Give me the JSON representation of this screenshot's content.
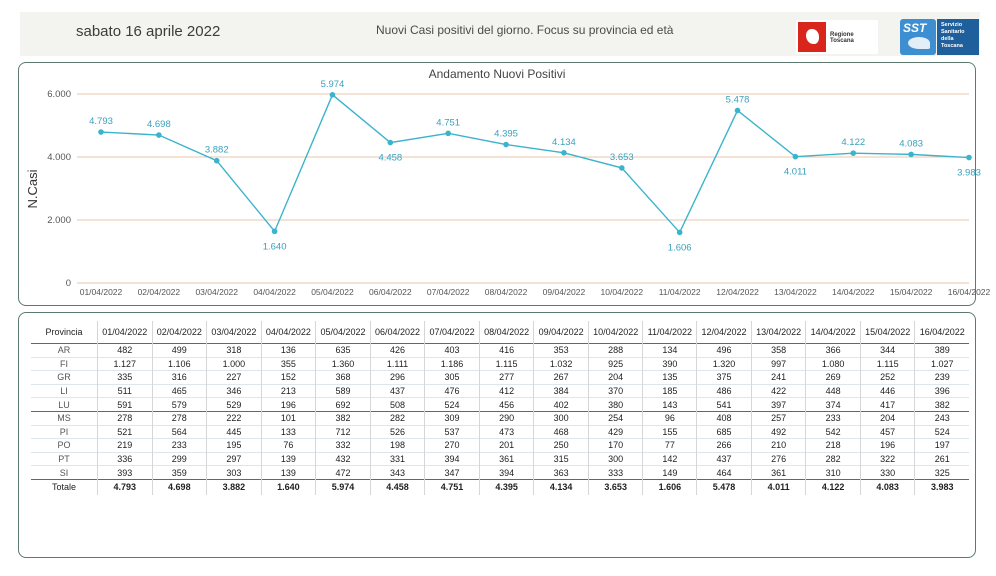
{
  "header": {
    "date": "sabato 16 aprile 2022",
    "subtitle": "Nuovi Casi positivi del giorno. Focus su provincia ed età",
    "logo_regione": "Regione Toscana",
    "logo_sst_short": "SST",
    "logo_sst_line1": "Servizio",
    "logo_sst_line2": "Sanitario",
    "logo_sst_line3": "della",
    "logo_sst_line4": "Toscana"
  },
  "colors": {
    "line": "#3bb3cc",
    "gridline": "#e8c4a8",
    "label": "#3aa0bb",
    "border": "#5c7a6e"
  },
  "chart_data": {
    "type": "line",
    "title": "Andamento Nuovi Positivi",
    "ylabel": "N.Casi",
    "xlabel": "",
    "ylim": [
      0,
      6000
    ],
    "yticks": [
      0,
      2000,
      4000,
      6000
    ],
    "ytick_labels": [
      "0",
      "2.000",
      "4.000",
      "6.000"
    ],
    "categories": [
      "01/04/2022",
      "02/04/2022",
      "03/04/2022",
      "04/04/2022",
      "05/04/2022",
      "06/04/2022",
      "07/04/2022",
      "08/04/2022",
      "09/04/2022",
      "10/04/2022",
      "11/04/2022",
      "12/04/2022",
      "13/04/2022",
      "14/04/2022",
      "15/04/2022",
      "16/04/2022"
    ],
    "values": [
      4793,
      4698,
      3882,
      1640,
      5974,
      4458,
      4751,
      4395,
      4134,
      3653,
      1606,
      5478,
      4011,
      4122,
      4083,
      3983
    ],
    "value_labels": [
      "4.793",
      "4.698",
      "3.882",
      "1.640",
      "5.974",
      "4.458",
      "4.751",
      "4.395",
      "4.134",
      "3.653",
      "1.606",
      "5.478",
      "4.011",
      "4.122",
      "4.083",
      "3.983"
    ],
    "label_below": [
      false,
      false,
      false,
      true,
      false,
      true,
      false,
      false,
      false,
      false,
      true,
      false,
      true,
      false,
      false,
      true
    ],
    "grid": true
  },
  "table": {
    "header_label": "Provincia",
    "rows": [
      {
        "name": "AR",
        "values": [
          "482",
          "499",
          "318",
          "136",
          "635",
          "426",
          "403",
          "416",
          "353",
          "288",
          "134",
          "496",
          "358",
          "366",
          "344",
          "389"
        ]
      },
      {
        "name": "FI",
        "values": [
          "1.127",
          "1.106",
          "1.000",
          "355",
          "1.360",
          "1.111",
          "1.186",
          "1.115",
          "1.032",
          "925",
          "390",
          "1.320",
          "997",
          "1.080",
          "1.115",
          "1.027"
        ]
      },
      {
        "name": "GR",
        "values": [
          "335",
          "316",
          "227",
          "152",
          "368",
          "296",
          "305",
          "277",
          "267",
          "204",
          "135",
          "375",
          "241",
          "269",
          "252",
          "239"
        ]
      },
      {
        "name": "LI",
        "values": [
          "511",
          "465",
          "346",
          "213",
          "589",
          "437",
          "476",
          "412",
          "384",
          "370",
          "185",
          "486",
          "422",
          "448",
          "446",
          "396"
        ]
      },
      {
        "name": "LU",
        "values": [
          "591",
          "579",
          "529",
          "196",
          "692",
          "508",
          "524",
          "456",
          "402",
          "380",
          "143",
          "541",
          "397",
          "374",
          "417",
          "382"
        ]
      },
      {
        "name": "MS",
        "values": [
          "278",
          "278",
          "222",
          "101",
          "382",
          "282",
          "309",
          "290",
          "300",
          "254",
          "96",
          "408",
          "257",
          "233",
          "204",
          "243"
        ]
      },
      {
        "name": "PI",
        "values": [
          "521",
          "564",
          "445",
          "133",
          "712",
          "526",
          "537",
          "473",
          "468",
          "429",
          "155",
          "685",
          "492",
          "542",
          "457",
          "524"
        ]
      },
      {
        "name": "PO",
        "values": [
          "219",
          "233",
          "195",
          "76",
          "332",
          "198",
          "270",
          "201",
          "250",
          "170",
          "77",
          "266",
          "210",
          "218",
          "196",
          "197"
        ]
      },
      {
        "name": "PT",
        "values": [
          "336",
          "299",
          "297",
          "139",
          "432",
          "331",
          "394",
          "361",
          "315",
          "300",
          "142",
          "437",
          "276",
          "282",
          "322",
          "261"
        ]
      },
      {
        "name": "SI",
        "values": [
          "393",
          "359",
          "303",
          "139",
          "472",
          "343",
          "347",
          "394",
          "363",
          "333",
          "149",
          "464",
          "361",
          "310",
          "330",
          "325"
        ]
      }
    ],
    "total": {
      "name": "Totale",
      "values": [
        "4.793",
        "4.698",
        "3.882",
        "1.640",
        "5.974",
        "4.458",
        "4.751",
        "4.395",
        "4.134",
        "3.653",
        "1.606",
        "5.478",
        "4.011",
        "4.122",
        "4.083",
        "3.983"
      ]
    }
  }
}
